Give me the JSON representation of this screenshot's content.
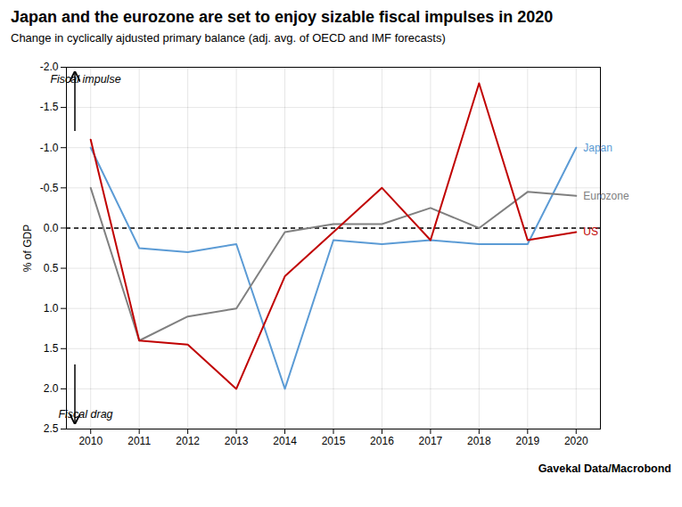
{
  "chart_data": {
    "type": "line",
    "title": "Japan and the eurozone are set to enjoy sizable fiscal impulses in 2020",
    "subtitle": "Change in cyclically ajdusted primary balance (adj. avg. of OECD and IMF forecasts)",
    "ylabel": "% of GDP",
    "source": "Gavekal Data/Macrobond",
    "x": [
      2010,
      2011,
      2012,
      2013,
      2014,
      2015,
      2016,
      2017,
      2018,
      2019,
      2020
    ],
    "series": [
      {
        "name": "Japan",
        "color": "#5b9bd5",
        "values": [
          -1.0,
          0.25,
          0.3,
          0.2,
          2.0,
          0.15,
          0.2,
          0.15,
          0.2,
          0.2,
          -1.0
        ]
      },
      {
        "name": "Eurozone",
        "color": "#808080",
        "values": [
          -0.5,
          1.4,
          1.1,
          1.0,
          0.05,
          -0.05,
          -0.05,
          -0.25,
          0.0,
          -0.45,
          -0.4
        ]
      },
      {
        "name": "US",
        "color": "#c00000",
        "values": [
          -1.1,
          1.4,
          1.45,
          2.0,
          0.6,
          0.05,
          -0.5,
          0.15,
          -1.8,
          0.15,
          0.05
        ]
      }
    ],
    "xlim": [
      2009.5,
      2020.5
    ],
    "xticks": [
      2010,
      2011,
      2012,
      2013,
      2014,
      2015,
      2016,
      2017,
      2018,
      2019,
      2020
    ],
    "ylim": [
      2.5,
      -2.0
    ],
    "yticks": [
      {
        "value": -2.0,
        "label": "-2.0"
      },
      -1.5,
      {
        "value": -1.0,
        "label": "-1.0"
      },
      -0.5,
      {
        "value": 0.0,
        "label": "0.0"
      },
      0.5,
      {
        "value": 1.0,
        "label": "1.0"
      },
      1.5,
      {
        "value": 2.0,
        "label": "2.0"
      },
      2.5
    ],
    "grid": true,
    "reference_lines": [
      {
        "y": 0,
        "color": "black",
        "line_style": "dashed"
      }
    ],
    "annotations": [
      {
        "text": "Fiscal impulse",
        "arrow": "up"
      },
      {
        "text": "Fiscal drag",
        "arrow": "down"
      }
    ]
  }
}
